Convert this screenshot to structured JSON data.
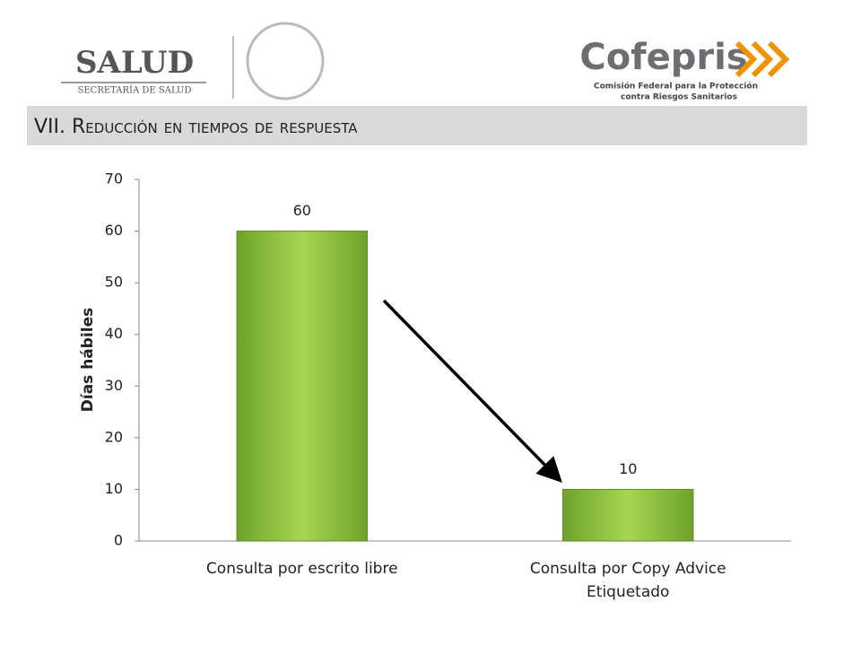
{
  "header": {
    "left_logo": "SALUD",
    "left_subtitle": "SECRETARÍA DE SALUD",
    "right_logo": "Cofepris",
    "right_subtitle_1": "Comisión Federal para la Protección",
    "right_subtitle_2": "contra Riesgos Sanitarios",
    "section_title": "VII. Reducción en tiempos de respuesta"
  },
  "chart_data": {
    "type": "bar",
    "y_label": "Días hábiles",
    "categories": [
      "Consulta por escrito libre",
      "Consulta por Copy Advice Etiquetado"
    ],
    "values": [
      60,
      10
    ],
    "color": "#92c83e",
    "ylim": [
      0,
      70
    ],
    "yticks": [
      0,
      10,
      20,
      30,
      40,
      50,
      60,
      70
    ],
    "grid": false
  }
}
